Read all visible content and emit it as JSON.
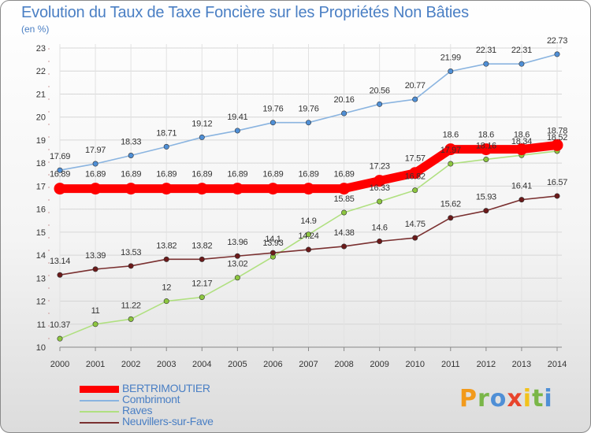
{
  "header": {
    "title": "Evolution du Taux de Taxe Foncière sur les Propriétés Non Bâties",
    "subtitle": "(en %)"
  },
  "logo": {
    "text": "Proxiti"
  },
  "chart_data": {
    "type": "line",
    "title": "Evolution du Taux de Taxe Foncière sur les Propriétés Non Bâties",
    "ylabel": "(en %)",
    "xlabel": "",
    "x": [
      "2000",
      "2001",
      "2002",
      "2003",
      "2004",
      "2005",
      "2006",
      "2007",
      "2008",
      "2009",
      "2010",
      "2011",
      "2012",
      "2013",
      "2014"
    ],
    "ylim": [
      10,
      23
    ],
    "yticks": [
      10,
      11,
      12,
      13,
      14,
      15,
      16,
      17,
      18,
      19,
      20,
      21,
      22,
      23
    ],
    "grid": "horizontal",
    "legend_position": "bottom-left",
    "series": [
      {
        "name": "BERTRIMOUTIER",
        "color": "#ff0000",
        "line_color": "#ff0000",
        "marker_color": "#ff0000",
        "emphasis": true,
        "values": [
          16.89,
          16.89,
          16.89,
          16.89,
          16.89,
          16.89,
          16.89,
          16.89,
          16.89,
          17.23,
          17.57,
          18.6,
          18.6,
          18.6,
          18.78
        ],
        "labels": [
          "16.89",
          "16.89",
          "16.89",
          "16.89",
          "16.89",
          "16.89",
          "16.89",
          "16.89",
          "16.89",
          "17.23",
          "17.57",
          "18.6",
          "18.6",
          "18.6",
          "18.78"
        ]
      },
      {
        "name": "Combrimont",
        "color": "#4f8fd6",
        "line_color": "#8ab4e0",
        "marker_color": "#4f8fd6",
        "emphasis": false,
        "values": [
          17.69,
          17.97,
          18.33,
          18.71,
          19.12,
          19.41,
          19.76,
          19.76,
          20.16,
          20.56,
          20.77,
          21.99,
          22.31,
          22.31,
          22.73
        ],
        "labels": [
          "17.69",
          "17.97",
          "18.33",
          "18.71",
          "19.12",
          "19.41",
          "19.76",
          "19.76",
          "20.16",
          "20.56",
          "20.77",
          "21.99",
          "22.31",
          "22.31",
          "22.73"
        ]
      },
      {
        "name": "Raves",
        "color": "#8dc63f",
        "line_color": "#b0e080",
        "marker_color": "#8dc63f",
        "emphasis": false,
        "values": [
          10.37,
          11,
          11.22,
          12,
          12.17,
          13.02,
          13.93,
          14.9,
          15.85,
          16.33,
          16.82,
          17.97,
          18.16,
          18.34,
          18.52
        ],
        "labels": [
          "10.37",
          "11",
          "11.22",
          "12",
          "12.17",
          "13.02",
          "13.93",
          "14.9",
          "15.85",
          "16.33",
          "16.82",
          "17.97",
          "18.16",
          "18.34",
          "18.52"
        ]
      },
      {
        "name": "Neuvillers-sur-Fave",
        "color": "#6b1a1a",
        "line_color": "#7a3030",
        "marker_color": "#6b1a1a",
        "emphasis": false,
        "values": [
          13.14,
          13.39,
          13.53,
          13.82,
          13.82,
          13.96,
          14.1,
          14.24,
          14.38,
          14.6,
          14.75,
          15.62,
          15.93,
          16.41,
          16.57
        ],
        "labels": [
          "13.14",
          "13.39",
          "13.53",
          "13.82",
          "13.82",
          "13.96",
          "14.1",
          "14.24",
          "14.38",
          "14.6",
          "14.75",
          "15.62",
          "15.93",
          "16.41",
          "16.57"
        ]
      }
    ]
  }
}
